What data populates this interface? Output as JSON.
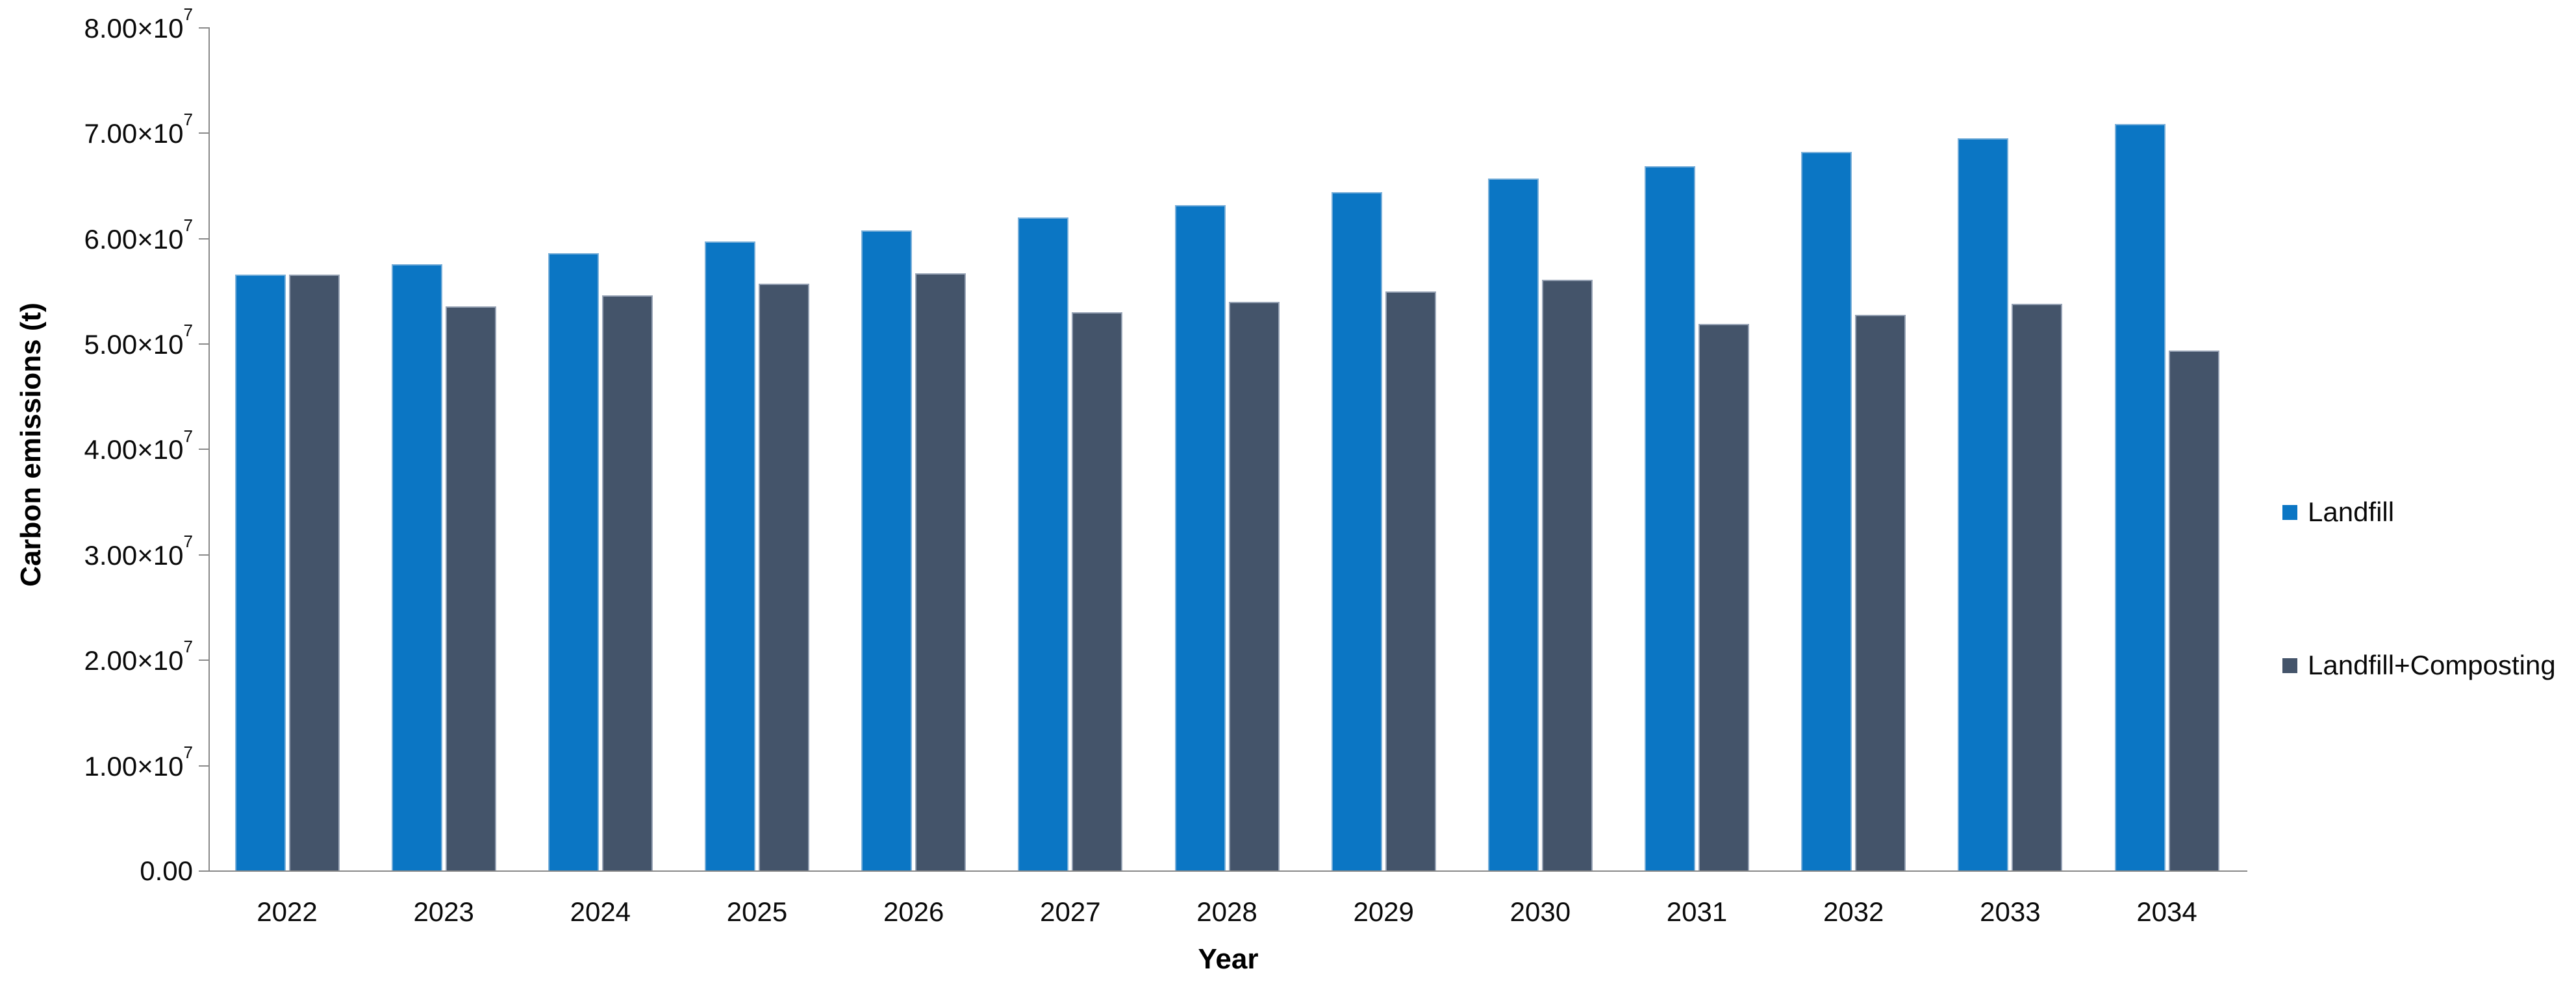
{
  "chart_data": {
    "type": "bar",
    "title": "",
    "xlabel": "Year",
    "ylabel": "Carbon emissions (t)",
    "categories": [
      "2022",
      "2023",
      "2024",
      "2025",
      "2026",
      "2027",
      "2028",
      "2029",
      "2030",
      "2031",
      "2032",
      "2033",
      "2034"
    ],
    "series": [
      {
        "name": "Landfill",
        "color": "#0B76C4",
        "values": [
          56600000,
          57600000,
          58600000,
          59700000,
          60800000,
          62000000,
          63200000,
          64400000,
          65700000,
          66900000,
          68200000,
          69500000,
          70900000
        ]
      },
      {
        "name": "Landfill+Composting",
        "color": "#44546A",
        "values": [
          56600000,
          53600000,
          54600000,
          55700000,
          56700000,
          53000000,
          54000000,
          55000000,
          56100000,
          51900000,
          52800000,
          53800000,
          49400000
        ]
      }
    ],
    "ylim": [
      0,
      80000000
    ],
    "ytick_interval": 10000000,
    "ytick_labels": [
      "0.00",
      "1.00×10^7",
      "2.00×10^7",
      "3.00×10^7",
      "4.00×10^7",
      "5.00×10^7",
      "6.00×10^7",
      "7.00×10^7",
      "8.00×10^7"
    ],
    "grid": false,
    "legend_position": "right",
    "colors": {
      "background": "#FFFFFF",
      "axis": "#898989",
      "text": "#000000"
    }
  }
}
